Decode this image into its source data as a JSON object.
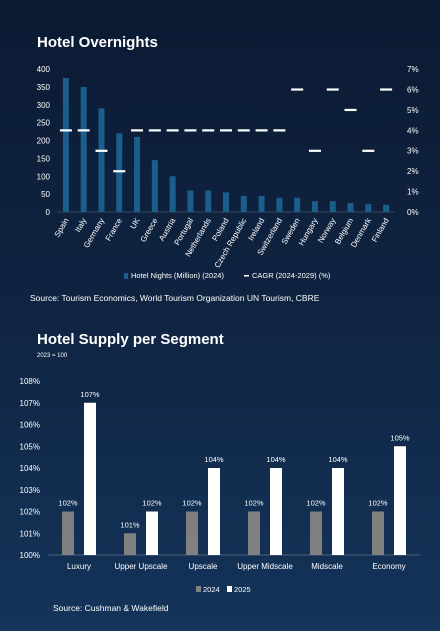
{
  "chart_data": [
    {
      "type": "bar",
      "title": "Hotel Overnights",
      "categories": [
        "Spain",
        "Italy",
        "Germany",
        "France",
        "UK",
        "Greece",
        "Austria",
        "Portugal",
        "Netherlands",
        "Poland",
        "Czech Republic",
        "Ireland",
        "Switzerland",
        "Sweden",
        "Hungary",
        "Norway",
        "Belgium",
        "Denmark",
        "Finland"
      ],
      "series": [
        {
          "name": "Hotel Nights (Million) (2024)",
          "kind": "bar",
          "axis": "left",
          "values": [
            375,
            350,
            290,
            220,
            210,
            145,
            100,
            60,
            60,
            55,
            45,
            45,
            40,
            40,
            30,
            30,
            25,
            22,
            20
          ]
        },
        {
          "name": "CAGR (2024-2029) (%)",
          "kind": "marker",
          "axis": "right",
          "values": [
            4,
            4,
            3,
            2,
            4,
            4,
            4,
            4,
            4,
            4,
            4,
            4,
            4,
            6,
            3,
            6,
            5,
            3,
            6
          ]
        }
      ],
      "ylim": [
        0,
        400
      ],
      "yticks": [
        "0",
        "50",
        "100",
        "150",
        "200",
        "250",
        "300",
        "350",
        "400"
      ],
      "y2lim": [
        0,
        7
      ],
      "y2ticks": [
        "0%",
        "1%",
        "2%",
        "3%",
        "4%",
        "5%",
        "6%",
        "7%"
      ],
      "colors": {
        "bar": "#1b5e8c",
        "marker": "#ffffff"
      },
      "legend_position": "bottom",
      "source": "Source: Tourism Economics, World Tourism Organization UN Tourism, CBRE"
    },
    {
      "type": "bar",
      "title": "Hotel Supply per Segment",
      "note": "2023 = 100",
      "categories": [
        "Luxury",
        "Upper Upscale",
        "Upscale",
        "Upper Midscale",
        "Midscale",
        "Economy"
      ],
      "series": [
        {
          "name": "2024",
          "values": [
            102,
            101,
            102,
            102,
            102,
            102
          ],
          "labels": [
            "102%",
            "101%",
            "102%",
            "102%",
            "102%",
            "102%"
          ],
          "color": "#808080"
        },
        {
          "name": "2025",
          "values": [
            107,
            102,
            104,
            104,
            104,
            105
          ],
          "labels": [
            "107%",
            "102%",
            "104%",
            "104%",
            "104%",
            "105%"
          ],
          "color": "#ffffff"
        }
      ],
      "ylim": [
        100,
        108
      ],
      "yticks": [
        "100%",
        "101%",
        "102%",
        "103%",
        "104%",
        "105%",
        "106%",
        "107%",
        "108%"
      ],
      "legend_position": "bottom",
      "source": "Source: Cushman & Wakefield"
    }
  ]
}
